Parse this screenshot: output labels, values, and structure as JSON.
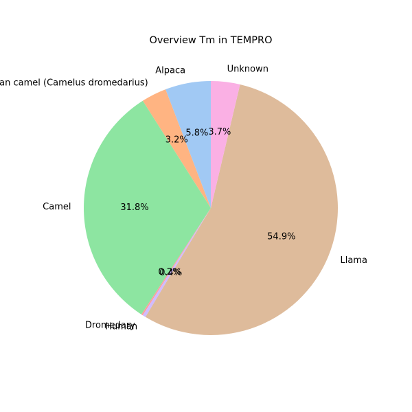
{
  "chart_data": {
    "type": "pie",
    "title": "Overview Tm in TEMPRO",
    "start_angle_deg": 90,
    "direction": "counterclockwise",
    "slices": [
      {
        "label": "Alpaca",
        "value": 5.8,
        "pct_label": "5.8%",
        "color": "#a1c9f4"
      },
      {
        "label": "Arabian camel (Camelus dromedarius)",
        "value": 3.2,
        "pct_label": "3.2%",
        "color": "#ffb482"
      },
      {
        "label": "Camel",
        "value": 31.8,
        "pct_label": "31.8%",
        "color": "#8de5a1"
      },
      {
        "label": "Dromedary",
        "value": 0.2,
        "pct_label": "0.2%",
        "color": "#ff9f9b"
      },
      {
        "label": "Human",
        "value": 0.4,
        "pct_label": "0.4%",
        "color": "#d0bbff"
      },
      {
        "label": "Llama",
        "value": 54.9,
        "pct_label": "54.9%",
        "color": "#debb9b"
      },
      {
        "label": "Unknown",
        "value": 3.7,
        "pct_label": "3.7%",
        "color": "#fab0e4"
      }
    ]
  }
}
